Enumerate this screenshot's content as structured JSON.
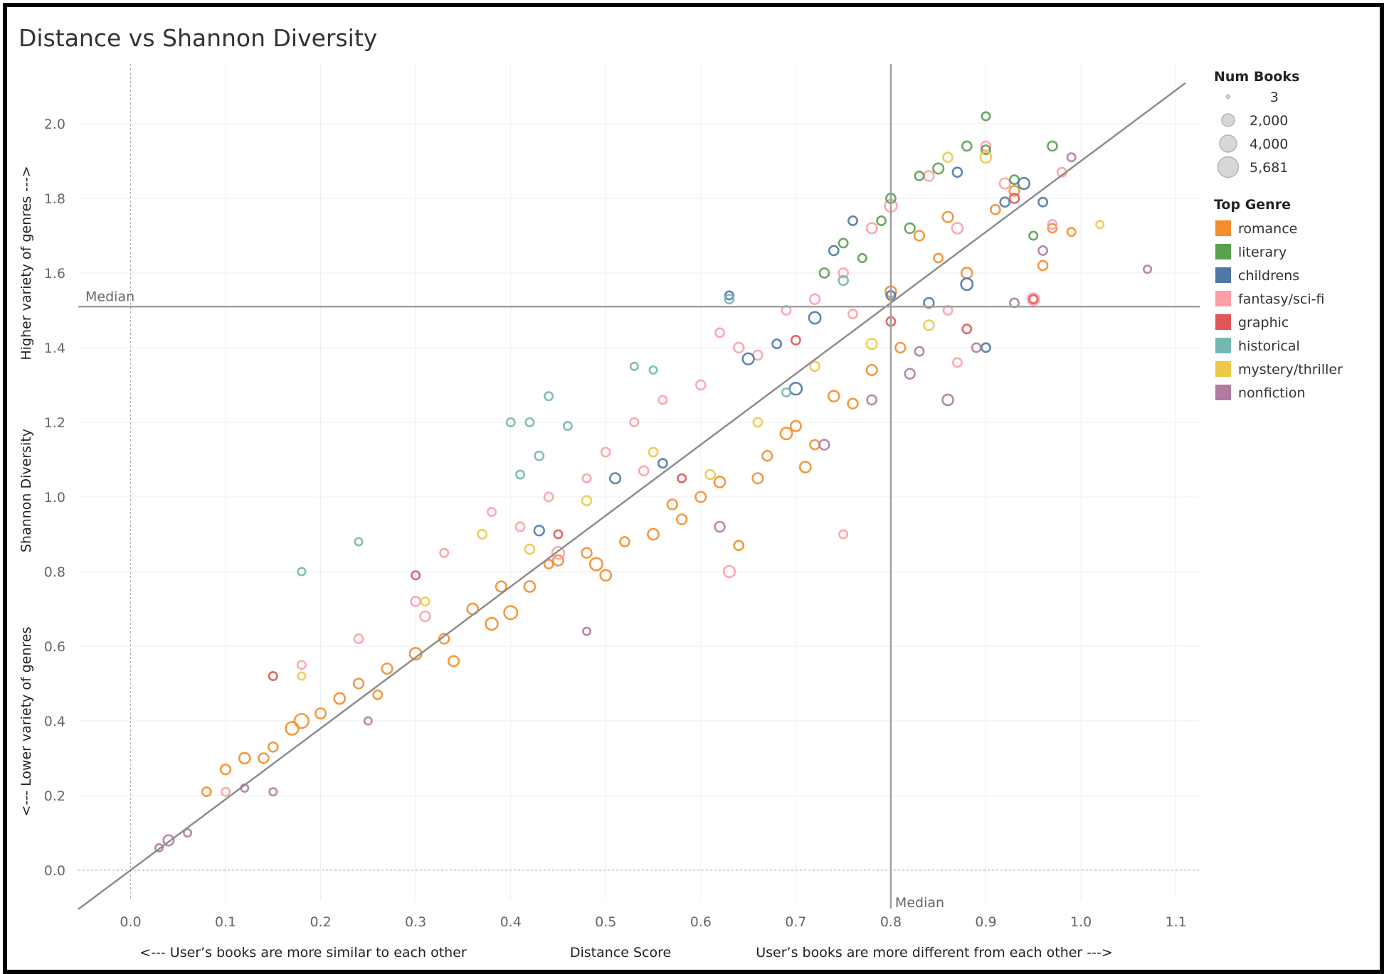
{
  "title": "Distance vs Shannon Diversity",
  "colors": {
    "romance": "#f28e2b",
    "literary": "#59a14f",
    "childrens": "#4e79a7",
    "fantasy/sci-fi": "#ff9da7",
    "graphic": "#e15759",
    "historical": "#76b7b2",
    "mystery/thriller": "#edc948",
    "nonfiction": "#b07aa1"
  },
  "chart_data": {
    "type": "scatter",
    "title": "Distance vs Shannon Diversity",
    "x_label_left": "<--- User’s books are more similar to each other",
    "x_label_center": "Distance Score",
    "x_label_right": "User’s books are more different from each other --->",
    "y_label_top": "Higher variety of genres --->",
    "y_label_center": "Shannon Diversity",
    "y_label_bottom": "<--- Lower variety of genres",
    "xlim": [
      -0.055,
      1.125
    ],
    "ylim": [
      -0.08,
      2.16
    ],
    "x_ticks": [
      "0.0",
      "0.1",
      "0.2",
      "0.3",
      "0.4",
      "0.5",
      "0.6",
      "0.7",
      "0.8",
      "0.9",
      "1.0",
      "1.1"
    ],
    "y_ticks": [
      "0.0",
      "0.2",
      "0.4",
      "0.6",
      "0.8",
      "1.0",
      "1.2",
      "1.4",
      "1.6",
      "1.8",
      "2.0"
    ],
    "grid": true,
    "median_x": 0.8,
    "median_y": 1.51,
    "median_label": "Median",
    "trend_line": {
      "slope": 1.9,
      "intercept": 0.0
    },
    "size_legend": {
      "title": "Num Books",
      "entries": [
        "3",
        "2,000",
        "4,000",
        "5,681"
      ],
      "values": [
        3,
        2000,
        4000,
        5681
      ]
    },
    "color_legend": {
      "title": "Top Genre",
      "entries": [
        "romance",
        "literary",
        "childrens",
        "fantasy/sci-fi",
        "graphic",
        "historical",
        "mystery/thriller",
        "nonfiction"
      ]
    },
    "legend_position": "right",
    "series_points": [
      {
        "name": "romance",
        "points": [
          [
            0.1,
            0.27,
            700
          ],
          [
            0.12,
            0.3,
            900
          ],
          [
            0.15,
            0.33,
            600
          ],
          [
            0.17,
            0.38,
            1400
          ],
          [
            0.18,
            0.4,
            1800
          ],
          [
            0.2,
            0.42,
            800
          ],
          [
            0.22,
            0.46,
            900
          ],
          [
            0.24,
            0.5,
            700
          ],
          [
            0.27,
            0.54,
            800
          ],
          [
            0.3,
            0.58,
            1100
          ],
          [
            0.33,
            0.62,
            700
          ],
          [
            0.36,
            0.7,
            900
          ],
          [
            0.38,
            0.66,
            1200
          ],
          [
            0.39,
            0.76,
            800
          ],
          [
            0.4,
            0.69,
            1500
          ],
          [
            0.42,
            0.76,
            900
          ],
          [
            0.45,
            0.83,
            800
          ],
          [
            0.48,
            0.85,
            700
          ],
          [
            0.49,
            0.82,
            1300
          ],
          [
            0.52,
            0.88,
            600
          ],
          [
            0.55,
            0.9,
            900
          ],
          [
            0.57,
            0.98,
            700
          ],
          [
            0.6,
            1.0,
            800
          ],
          [
            0.62,
            1.04,
            900
          ],
          [
            0.64,
            0.87,
            600
          ],
          [
            0.67,
            1.11,
            700
          ],
          [
            0.69,
            1.17,
            1100
          ],
          [
            0.7,
            1.19,
            800
          ],
          [
            0.72,
            1.14,
            600
          ],
          [
            0.74,
            1.27,
            900
          ],
          [
            0.76,
            1.25,
            700
          ],
          [
            0.78,
            1.34,
            800
          ],
          [
            0.8,
            1.55,
            900
          ],
          [
            0.83,
            1.7,
            700
          ],
          [
            0.86,
            1.75,
            800
          ],
          [
            0.88,
            1.6,
            900
          ],
          [
            0.91,
            1.77,
            600
          ],
          [
            0.93,
            1.82,
            700
          ],
          [
            0.97,
            1.72,
            500
          ],
          [
            0.99,
            1.71,
            400
          ],
          [
            0.08,
            0.21,
            500
          ],
          [
            0.14,
            0.3,
            700
          ],
          [
            0.26,
            0.47,
            500
          ],
          [
            0.34,
            0.56,
            800
          ],
          [
            0.44,
            0.82,
            500
          ],
          [
            0.5,
            0.79,
            900
          ],
          [
            0.58,
            0.94,
            700
          ],
          [
            0.66,
            1.05,
            800
          ],
          [
            0.71,
            1.08,
            900
          ],
          [
            0.81,
            1.4,
            700
          ],
          [
            0.85,
            1.64,
            500
          ],
          [
            0.96,
            1.62,
            600
          ]
        ]
      },
      {
        "name": "fantasy/sci-fi",
        "points": [
          [
            0.1,
            0.21,
            400
          ],
          [
            0.18,
            0.55,
            400
          ],
          [
            0.24,
            0.62,
            500
          ],
          [
            0.3,
            0.72,
            600
          ],
          [
            0.33,
            0.85,
            400
          ],
          [
            0.38,
            0.96,
            400
          ],
          [
            0.44,
            1.0,
            500
          ],
          [
            0.45,
            0.85,
            1200
          ],
          [
            0.48,
            1.05,
            400
          ],
          [
            0.5,
            1.12,
            500
          ],
          [
            0.53,
            1.2,
            400
          ],
          [
            0.56,
            1.26,
            400
          ],
          [
            0.6,
            1.3,
            600
          ],
          [
            0.62,
            1.44,
            500
          ],
          [
            0.63,
            0.8,
            1000
          ],
          [
            0.66,
            1.38,
            600
          ],
          [
            0.69,
            1.5,
            500
          ],
          [
            0.72,
            1.53,
            700
          ],
          [
            0.75,
            1.6,
            600
          ],
          [
            0.78,
            1.72,
            800
          ],
          [
            0.8,
            1.78,
            1200
          ],
          [
            0.84,
            1.86,
            700
          ],
          [
            0.87,
            1.72,
            900
          ],
          [
            0.9,
            1.94,
            600
          ],
          [
            0.92,
            1.84,
            800
          ],
          [
            0.95,
            1.53,
            1100
          ],
          [
            0.97,
            1.73,
            500
          ],
          [
            0.31,
            0.68,
            700
          ],
          [
            0.41,
            0.92,
            500
          ],
          [
            0.54,
            1.07,
            600
          ],
          [
            0.64,
            1.4,
            700
          ],
          [
            0.76,
            1.49,
            500
          ],
          [
            0.86,
            1.5,
            500
          ],
          [
            0.98,
            1.87,
            500
          ],
          [
            0.87,
            1.36,
            500
          ],
          [
            0.75,
            0.9,
            400
          ]
        ]
      },
      {
        "name": "literary",
        "points": [
          [
            0.73,
            1.6,
            600
          ],
          [
            0.75,
            1.68,
            500
          ],
          [
            0.77,
            1.64,
            400
          ],
          [
            0.8,
            1.8,
            600
          ],
          [
            0.82,
            1.72,
            700
          ],
          [
            0.83,
            1.86,
            500
          ],
          [
            0.85,
            1.88,
            800
          ],
          [
            0.88,
            1.94,
            600
          ],
          [
            0.9,
            1.93,
            500
          ],
          [
            0.9,
            2.02,
            400
          ],
          [
            0.93,
            1.85,
            500
          ],
          [
            0.95,
            1.7,
            400
          ],
          [
            0.97,
            1.94,
            600
          ],
          [
            0.79,
            1.74,
            500
          ]
        ]
      },
      {
        "name": "childrens",
        "points": [
          [
            0.43,
            0.91,
            700
          ],
          [
            0.51,
            1.05,
            800
          ],
          [
            0.56,
            1.09,
            500
          ],
          [
            0.63,
            1.54,
            400
          ],
          [
            0.65,
            1.37,
            1000
          ],
          [
            0.68,
            1.41,
            500
          ],
          [
            0.7,
            1.29,
            1200
          ],
          [
            0.72,
            1.48,
            1100
          ],
          [
            0.74,
            1.66,
            600
          ],
          [
            0.76,
            1.74,
            500
          ],
          [
            0.8,
            1.54,
            500
          ],
          [
            0.84,
            1.52,
            700
          ],
          [
            0.87,
            1.87,
            600
          ],
          [
            0.88,
            1.57,
            1100
          ],
          [
            0.9,
            1.4,
            500
          ],
          [
            0.92,
            1.79,
            600
          ],
          [
            0.94,
            1.84,
            1000
          ],
          [
            0.96,
            1.79,
            500
          ]
        ]
      },
      {
        "name": "historical",
        "points": [
          [
            0.18,
            0.8,
            300
          ],
          [
            0.24,
            0.88,
            300
          ],
          [
            0.4,
            1.2,
            400
          ],
          [
            0.41,
            1.06,
            400
          ],
          [
            0.42,
            1.2,
            400
          ],
          [
            0.43,
            1.11,
            500
          ],
          [
            0.44,
            1.27,
            400
          ],
          [
            0.46,
            1.19,
            400
          ],
          [
            0.53,
            1.35,
            300
          ],
          [
            0.55,
            1.34,
            300
          ],
          [
            0.63,
            1.53,
            500
          ],
          [
            0.69,
            1.28,
            400
          ],
          [
            0.75,
            1.58,
            600
          ]
        ]
      },
      {
        "name": "graphic",
        "points": [
          [
            0.15,
            0.52,
            400
          ],
          [
            0.3,
            0.79,
            400
          ],
          [
            0.45,
            0.9,
            400
          ],
          [
            0.58,
            1.05,
            400
          ],
          [
            0.7,
            1.42,
            500
          ],
          [
            0.8,
            1.47,
            500
          ],
          [
            0.88,
            1.45,
            500
          ],
          [
            0.95,
            1.53,
            400
          ],
          [
            0.93,
            1.8,
            600
          ]
        ]
      },
      {
        "name": "mystery/thriller",
        "points": [
          [
            0.18,
            0.52,
            300
          ],
          [
            0.31,
            0.72,
            400
          ],
          [
            0.37,
            0.9,
            500
          ],
          [
            0.42,
            0.86,
            600
          ],
          [
            0.48,
            0.99,
            600
          ],
          [
            0.55,
            1.12,
            500
          ],
          [
            0.61,
            1.06,
            600
          ],
          [
            0.66,
            1.2,
            500
          ],
          [
            0.72,
            1.35,
            600
          ],
          [
            0.78,
            1.41,
            800
          ],
          [
            0.84,
            1.46,
            700
          ],
          [
            0.9,
            1.91,
            900
          ],
          [
            1.02,
            1.73,
            300
          ],
          [
            0.86,
            1.91,
            600
          ]
        ]
      },
      {
        "name": "nonfiction",
        "points": [
          [
            0.03,
            0.06,
            300
          ],
          [
            0.04,
            0.08,
            800
          ],
          [
            0.06,
            0.1,
            300
          ],
          [
            0.12,
            0.22,
            300
          ],
          [
            0.15,
            0.21,
            300
          ],
          [
            0.25,
            0.4,
            300
          ],
          [
            0.48,
            0.64,
            300
          ],
          [
            0.62,
            0.92,
            700
          ],
          [
            0.73,
            1.14,
            700
          ],
          [
            0.78,
            1.26,
            600
          ],
          [
            0.82,
            1.33,
            700
          ],
          [
            0.86,
            1.26,
            900
          ],
          [
            0.89,
            1.4,
            500
          ],
          [
            0.93,
            1.52,
            500
          ],
          [
            0.96,
            1.66,
            500
          ],
          [
            0.99,
            1.91,
            400
          ],
          [
            1.07,
            1.61,
            300
          ],
          [
            0.83,
            1.39,
            500
          ]
        ]
      }
    ]
  }
}
